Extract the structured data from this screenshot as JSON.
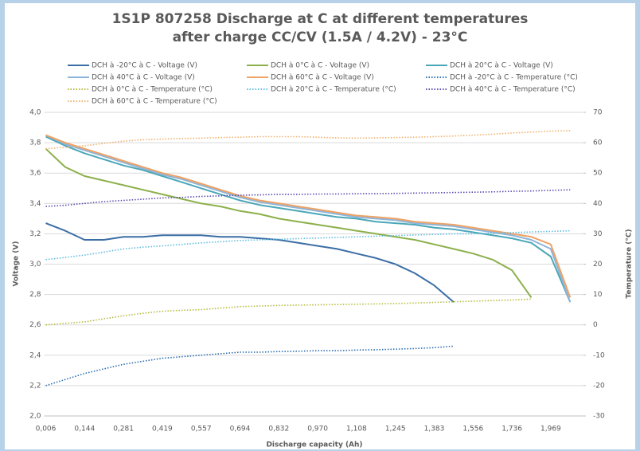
{
  "chart_data": {
    "type": "line",
    "title": "1S1P 807258 Discharge at C at different temperatures",
    "subtitle": "after charge CC/CV (1.5A / 4.2V) - 23°C",
    "x_label": "Discharge capacity (Ah)",
    "y_label": "Voltage (V)",
    "y2_label": "Temperature (°C)",
    "categories": [
      "0,006",
      null,
      "0,144",
      null,
      "0,281",
      null,
      "0,419",
      null,
      "0,557",
      null,
      "0,694",
      null,
      "0,832",
      null,
      "0,970",
      null,
      "1,108",
      null,
      "1,245",
      null,
      "1,383",
      null,
      "1,556",
      null,
      "1,736",
      null,
      "1,969",
      null
    ],
    "ylim": [
      2.0,
      4.0
    ],
    "yticks": [
      {
        "value": 2.0,
        "label": "2,0"
      },
      {
        "value": 2.2,
        "label": "2,2"
      },
      {
        "value": 2.4,
        "label": "2,4"
      },
      {
        "value": 2.6,
        "label": "2,6"
      },
      {
        "value": 2.8,
        "label": "2,8"
      },
      {
        "value": 3.0,
        "label": "3,0"
      },
      {
        "value": 3.2,
        "label": "3,2"
      },
      {
        "value": 3.4,
        "label": "3,4"
      },
      {
        "value": 3.6,
        "label": "3,6"
      },
      {
        "value": 3.8,
        "label": "3,8"
      },
      {
        "value": 4.0,
        "label": "4,0"
      }
    ],
    "y2lim": [
      -30,
      70
    ],
    "y2ticks": [
      -30,
      -20,
      -10,
      0,
      10,
      20,
      30,
      40,
      50,
      60,
      70
    ],
    "grid": true,
    "legend": "top",
    "series": [
      {
        "name": "DCH à -20°C à C - Voltage (V)",
        "color": "#3b6ea5",
        "style": "solid",
        "values": [
          3.27,
          3.22,
          3.16,
          3.16,
          3.18,
          3.18,
          3.19,
          3.19,
          3.19,
          3.18,
          3.18,
          3.17,
          3.16,
          3.14,
          3.12,
          3.1,
          3.07,
          3.04,
          3.0,
          2.94,
          2.86,
          2.75,
          null,
          null,
          null,
          null,
          null,
          null
        ]
      },
      {
        "name": "DCH à 0°C à C - Voltage (V)",
        "color": "#8cb04a",
        "style": "solid",
        "values": [
          3.76,
          3.64,
          3.58,
          3.55,
          3.52,
          3.49,
          3.46,
          3.43,
          3.4,
          3.38,
          3.35,
          3.33,
          3.3,
          3.28,
          3.26,
          3.24,
          3.22,
          3.2,
          3.18,
          3.16,
          3.13,
          3.1,
          3.07,
          3.03,
          2.96,
          2.78,
          null,
          null
        ]
      },
      {
        "name": "DCH à 20°C à C - Voltage (V)",
        "color": "#4ba7b8",
        "style": "solid",
        "values": [
          3.84,
          3.78,
          3.73,
          3.69,
          3.65,
          3.62,
          3.58,
          3.54,
          3.5,
          3.46,
          3.42,
          3.39,
          3.37,
          3.35,
          3.33,
          3.31,
          3.3,
          3.28,
          3.27,
          3.26,
          3.24,
          3.23,
          3.21,
          3.19,
          3.17,
          3.14,
          3.05,
          2.75
        ]
      },
      {
        "name": "DCH à 40°C à C - Voltage (V)",
        "color": "#8db4da",
        "style": "solid",
        "values": [
          3.85,
          3.79,
          3.75,
          3.71,
          3.67,
          3.63,
          3.59,
          3.56,
          3.52,
          3.48,
          3.44,
          3.41,
          3.39,
          3.37,
          3.35,
          3.33,
          3.31,
          3.3,
          3.29,
          3.27,
          3.26,
          3.25,
          3.23,
          3.21,
          3.19,
          3.16,
          3.1,
          2.75
        ]
      },
      {
        "name": "DCH à 60°C à C - Voltage (V)",
        "color": "#eea265",
        "style": "solid",
        "values": [
          3.85,
          3.8,
          3.76,
          3.72,
          3.68,
          3.64,
          3.6,
          3.57,
          3.53,
          3.49,
          3.45,
          3.42,
          3.4,
          3.38,
          3.36,
          3.34,
          3.32,
          3.31,
          3.3,
          3.28,
          3.27,
          3.26,
          3.24,
          3.22,
          3.2,
          3.18,
          3.13,
          2.78
        ]
      },
      {
        "name": "DCH à -20°C à C - Temperature (°C)",
        "color": "#2a6db0",
        "style": "dotted",
        "axis": "y2",
        "values": [
          -20,
          -18,
          -16,
          -14.5,
          -13,
          -12,
          -11,
          -10.5,
          -10,
          -9.5,
          -9,
          -9,
          -8.8,
          -8.7,
          -8.5,
          -8.5,
          -8.3,
          -8.2,
          -8,
          -7.8,
          -7.5,
          -7,
          null,
          null,
          null,
          null,
          null,
          null
        ]
      },
      {
        "name": "DCH à 0°C à C - Temperature (°C)",
        "color": "#b4bc3c",
        "style": "dotted",
        "axis": "y2",
        "values": [
          0,
          0.5,
          1,
          2,
          3,
          3.8,
          4.5,
          4.8,
          5,
          5.5,
          6,
          6.2,
          6.4,
          6.5,
          6.6,
          6.7,
          6.8,
          6.9,
          7,
          7.2,
          7.4,
          7.6,
          7.8,
          8,
          8.2,
          8.5,
          null,
          null
        ]
      },
      {
        "name": "DCH à 20°C à C - Temperature (°C)",
        "color": "#5fbde0",
        "style": "dotted",
        "axis": "y2",
        "values": [
          21.5,
          22.2,
          23,
          24,
          25,
          25.6,
          26,
          26.5,
          27,
          27.4,
          27.8,
          28,
          28.2,
          28.4,
          28.6,
          28.8,
          29,
          29.2,
          29.4,
          29.6,
          29.8,
          30,
          30,
          30.2,
          30.4,
          30.6,
          30.8,
          31
        ]
      },
      {
        "name": "DCH à 40°C à C - Temperature (°C)",
        "color": "#5a4cb0",
        "style": "dotted",
        "axis": "y2",
        "values": [
          39,
          39.4,
          40,
          40.6,
          41,
          41.4,
          41.8,
          42,
          42.3,
          42.5,
          42.7,
          42.8,
          43,
          43,
          43.1,
          43.1,
          43.2,
          43.2,
          43.3,
          43.4,
          43.5,
          43.6,
          43.7,
          43.8,
          44,
          44.1,
          44.3,
          44.5
        ]
      },
      {
        "name": "DCH à 60°C à C - Temperature (°C)",
        "color": "#f1b06c",
        "style": "dotted",
        "axis": "y2",
        "values": [
          58,
          58.5,
          59,
          59.8,
          60.5,
          61,
          61.2,
          61.4,
          61.5,
          61.7,
          61.8,
          62,
          62,
          62,
          61.8,
          61.6,
          61.5,
          61.6,
          61.7,
          61.8,
          62,
          62.2,
          62.5,
          62.8,
          63.2,
          63.5,
          63.8,
          64
        ]
      }
    ]
  }
}
